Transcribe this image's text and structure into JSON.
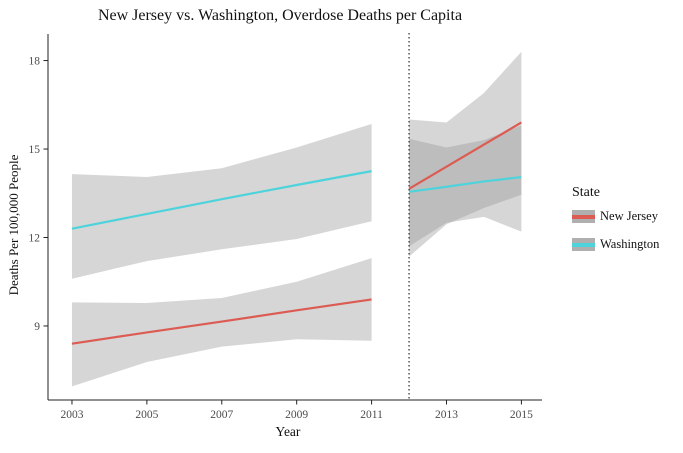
{
  "title": "New Jersey vs. Washington, Overdose Deaths per Capita",
  "axes": {
    "x_label": "Year",
    "y_label": "Deaths Per 100,000 People"
  },
  "legend": {
    "title": "State",
    "items": [
      {
        "label": "New Jersey",
        "color": "#DC5B52"
      },
      {
        "label": "Washington",
        "color": "#4DD3DB"
      }
    ]
  },
  "chart_data": {
    "type": "line",
    "title": "New Jersey vs. Washington, Overdose Deaths per Capita",
    "xlabel": "Year",
    "ylabel": "Deaths Per 100,000 People",
    "xlim": [
      2002.36,
      2015.55
    ],
    "ylim": [
      6.49,
      18.9
    ],
    "x_ticks": [
      2003,
      2005,
      2007,
      2009,
      2011,
      2013,
      2015
    ],
    "y_ticks": [
      9,
      12,
      15,
      18
    ],
    "grid": false,
    "legend_position": "right",
    "vline": {
      "x": 2012,
      "style": "dotted",
      "color": "#000000"
    },
    "band_color": "#999999",
    "band_opacity": 0.4,
    "series": [
      {
        "name": "New Jersey",
        "segment": "pre-2012",
        "color": "#DC5B52",
        "x": [
          2003,
          2005,
          2007,
          2009,
          2011
        ],
        "y": [
          8.4,
          8.78,
          9.15,
          9.53,
          9.9
        ],
        "ymax": [
          9.8,
          9.78,
          9.95,
          10.5,
          11.3
        ],
        "ymin": [
          6.95,
          7.78,
          8.3,
          8.55,
          8.5
        ]
      },
      {
        "name": "Washington",
        "segment": "pre-2012",
        "color": "#4DD3DB",
        "x": [
          2003,
          2005,
          2007,
          2009,
          2011
        ],
        "y": [
          12.3,
          12.8,
          13.3,
          13.78,
          14.25
        ],
        "ymax": [
          14.15,
          14.05,
          14.35,
          15.05,
          15.85
        ],
        "ymin": [
          10.6,
          11.2,
          11.6,
          11.95,
          12.55
        ]
      },
      {
        "name": "New Jersey",
        "segment": "post-2012",
        "color": "#DC5B52",
        "x": [
          2012,
          2013,
          2014,
          2015
        ],
        "y": [
          13.65,
          14.4,
          15.15,
          15.9
        ],
        "ymax": [
          16.0,
          15.9,
          16.9,
          18.3
        ],
        "ymin": [
          11.35,
          12.45,
          13.0,
          13.45
        ]
      },
      {
        "name": "Washington",
        "segment": "post-2012",
        "color": "#4DD3DB",
        "x": [
          2012,
          2013,
          2014,
          2015
        ],
        "y": [
          13.55,
          13.72,
          13.9,
          14.05
        ],
        "ymax": [
          15.35,
          15.05,
          15.3,
          15.8
        ],
        "ymin": [
          11.7,
          12.5,
          12.7,
          12.2
        ]
      }
    ]
  }
}
